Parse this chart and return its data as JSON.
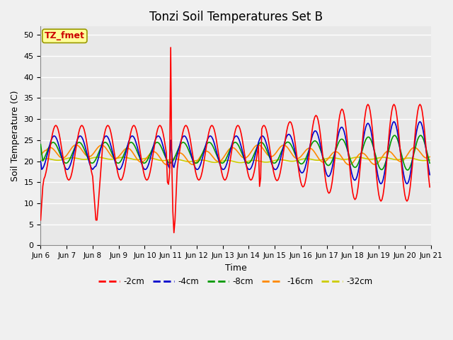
{
  "title": "Tonzi Soil Temperatures Set B",
  "xlabel": "Time",
  "ylabel": "Soil Temperature (C)",
  "ylim": [
    0,
    52
  ],
  "yticks": [
    0,
    5,
    10,
    15,
    20,
    25,
    30,
    35,
    40,
    45,
    50
  ],
  "colors": {
    "-2cm": "#ff0000",
    "-4cm": "#0000cc",
    "-8cm": "#009900",
    "-16cm": "#ff8800",
    "-32cm": "#cccc00"
  },
  "legend_labels": [
    "-2cm",
    "-4cm",
    "-8cm",
    "-16cm",
    "-32cm"
  ],
  "annotation_text": "TZ_fmet",
  "annotation_color": "#cc0000",
  "annotation_bg": "#ffff99",
  "plot_bg": "#e8e8e8",
  "fig_bg": "#f0f0f0",
  "grid_color": "#ffffff",
  "x_tick_labels": [
    "Jun 6",
    "Jun 7",
    "Jun 8",
    "Jun 9",
    "Jun 10",
    "Jun 11",
    "Jun 12",
    "Jun 13",
    "Jun 14",
    "Jun 15",
    "Jun 16",
    "Jun 17",
    "Jun 18",
    "Jun 19",
    "Jun 20",
    "Jun 21"
  ],
  "linewidth": 1.2,
  "title_fontsize": 12,
  "tick_fontsize": 8,
  "label_fontsize": 9
}
